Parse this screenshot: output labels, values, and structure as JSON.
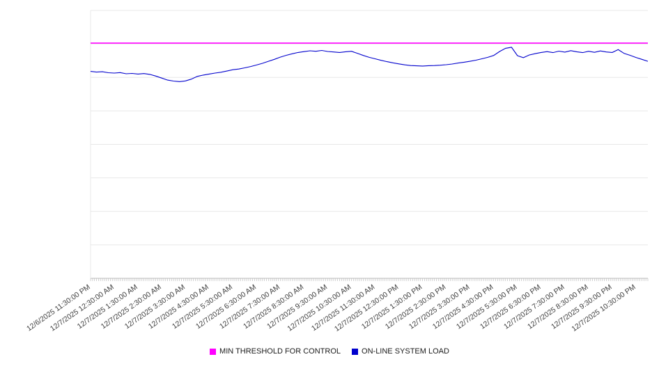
{
  "chart_data": {
    "type": "line",
    "title": "",
    "xlabel": "",
    "ylabel": "",
    "background_color": "#ffffff",
    "x_axis": {
      "span_hours": 23.5,
      "label_interval_hours": 1,
      "minor_tick_minutes": 5,
      "tick_labels": [
        "12/6/2025 11:30:00 PM",
        "12/7/2025 12:30:00 AM",
        "12/7/2025 1:30:00 AM",
        "12/7/2025 2:30:00 AM",
        "12/7/2025 3:30:00 AM",
        "12/7/2025 4:30:00 AM",
        "12/7/2025 5:30:00 AM",
        "12/7/2025 6:30:00 AM",
        "12/7/2025 7:30:00 AM",
        "12/7/2025 8:30:00 AM",
        "12/7/2025 9:30:00 AM",
        "12/7/2025 10:30:00 AM",
        "12/7/2025 11:30:00 AM",
        "12/7/2025 12:30:00 PM",
        "12/7/2025 1:30:00 PM",
        "12/7/2025 2:30:00 PM",
        "12/7/2025 3:30:00 PM",
        "12/7/2025 4:30:00 PM",
        "12/7/2025 5:30:00 PM",
        "12/7/2025 6:30:00 PM",
        "12/7/2025 7:30:00 PM",
        "12/7/2025 8:30:00 PM",
        "12/7/2025 9:30:00 PM",
        "12/7/2025 10:30:00 PM"
      ]
    },
    "y_axis": {
      "ylim": [
        0,
        160
      ],
      "grid_step": 20,
      "tick_labels_visible": false,
      "grid_on": true
    },
    "series": [
      {
        "name": "MIN THRESHOLD FOR CONTROL",
        "type": "threshold",
        "color": "#ff00ff",
        "value": 140.5
      },
      {
        "name": "ON-LINE SYSTEM LOAD",
        "type": "line",
        "color": "#0000cd",
        "step_hours": 0.25,
        "values": [
          123.6,
          123.2,
          123.4,
          122.8,
          122.6,
          122.9,
          122.2,
          122.4,
          122.0,
          122.3,
          121.8,
          120.8,
          119.6,
          118.4,
          117.8,
          117.5,
          117.9,
          119.0,
          120.6,
          121.4,
          122.0,
          122.6,
          123.1,
          123.8,
          124.6,
          125.0,
          125.7,
          126.5,
          127.4,
          128.4,
          129.6,
          130.8,
          132.1,
          133.2,
          134.1,
          134.9,
          135.4,
          135.9,
          135.6,
          136.1,
          135.5,
          135.2,
          134.9,
          135.3,
          135.6,
          134.4,
          133.1,
          132.0,
          131.1,
          130.2,
          129.4,
          128.7,
          128.1,
          127.5,
          127.1,
          126.9,
          126.8,
          127.0,
          127.1,
          127.3,
          127.6,
          128.0,
          128.6,
          129.1,
          129.6,
          130.3,
          131.1,
          132.0,
          133.1,
          135.5,
          137.4,
          138.0,
          133.0,
          131.8,
          133.4,
          134.2,
          134.9,
          135.4,
          134.8,
          135.7,
          135.1,
          136.0,
          135.3,
          134.8,
          135.6,
          135.0,
          135.8,
          135.2,
          134.9,
          136.6,
          134.3,
          133.2,
          131.9,
          130.8,
          129.6
        ]
      }
    ],
    "legend": {
      "position": "bottom",
      "items": [
        {
          "label": "MIN THRESHOLD FOR CONTROL",
          "color": "#ff00ff"
        },
        {
          "label": "ON-LINE SYSTEM LOAD",
          "color": "#0000cd"
        }
      ]
    },
    "colors": {
      "gridline": "#e8e8e8",
      "axis_line": "#b8b8b8",
      "tick": "#c0c0c0",
      "label_text": "#404040"
    }
  }
}
